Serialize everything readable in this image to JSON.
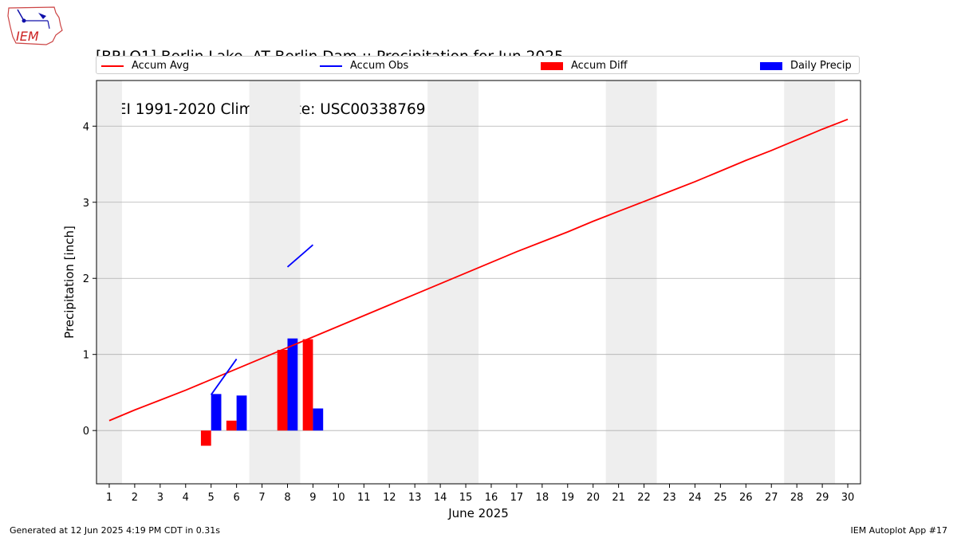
{
  "logo_text": "IEM",
  "title_line1": "[BRLO1] Berlin Lake  AT Berlin Dam :: Precipitation for Jun 2025",
  "title_line2": "NCEI 1991-2020 Climate Site: USC00338769",
  "legend": [
    {
      "label": "Accum Avg"
    },
    {
      "label": "Accum Obs"
    },
    {
      "label": "Accum Diff"
    },
    {
      "label": "Daily Precip"
    }
  ],
  "footer_left": "Generated at 12 Jun 2025 4:19 PM CDT in 0.31s",
  "footer_right": "IEM Autoplot App #17",
  "colors": {
    "avg": "#ff0000",
    "obs": "#0000ff",
    "diff": "#ff0000",
    "daily": "#0000ff",
    "weekend": "#eeeeee",
    "grid": "#b0b0b0"
  },
  "chart_data": {
    "type": "bar",
    "xlabel": "June 2025",
    "ylabel": "Precipitation [inch]",
    "xlim": [
      0.5,
      30.5
    ],
    "ylim": [
      -0.7,
      4.6
    ],
    "yticks": [
      0,
      1,
      2,
      3,
      4
    ],
    "xticks": [
      1,
      2,
      3,
      4,
      5,
      6,
      7,
      8,
      9,
      10,
      11,
      12,
      13,
      14,
      15,
      16,
      17,
      18,
      19,
      20,
      21,
      22,
      23,
      24,
      25,
      26,
      27,
      28,
      29,
      30
    ],
    "grid": "horizontal",
    "legend_position": "top",
    "weekend_shading": [
      [
        0.5,
        1.5
      ],
      [
        6.5,
        8.5
      ],
      [
        13.5,
        15.5
      ],
      [
        20.5,
        22.5
      ],
      [
        27.5,
        29.5
      ]
    ],
    "accum_avg": {
      "x": [
        1,
        2,
        3,
        4,
        5,
        6,
        7,
        8,
        9,
        10,
        11,
        12,
        13,
        14,
        15,
        16,
        17,
        18,
        19,
        20,
        21,
        22,
        23,
        24,
        25,
        26,
        27,
        28,
        29,
        30
      ],
      "y": [
        0.13,
        0.27,
        0.4,
        0.53,
        0.67,
        0.81,
        0.95,
        1.09,
        1.23,
        1.37,
        1.51,
        1.65,
        1.79,
        1.93,
        2.07,
        2.21,
        2.35,
        2.48,
        2.61,
        2.75,
        2.88,
        3.01,
        3.14,
        3.27,
        3.41,
        3.55,
        3.68,
        3.82,
        3.96,
        4.09
      ]
    },
    "accum_obs": [
      {
        "x": [
          5,
          6
        ],
        "y": [
          0.47,
          0.94
        ]
      },
      {
        "x": [
          8,
          9
        ],
        "y": [
          2.15,
          2.44
        ]
      }
    ],
    "accum_diff": {
      "x": [
        5,
        6,
        8,
        9
      ],
      "y": [
        -0.2,
        0.13,
        1.06,
        1.2
      ]
    },
    "daily_precip": {
      "x": [
        5,
        6,
        8,
        9
      ],
      "y": [
        0.48,
        0.46,
        1.21,
        0.29
      ]
    }
  }
}
